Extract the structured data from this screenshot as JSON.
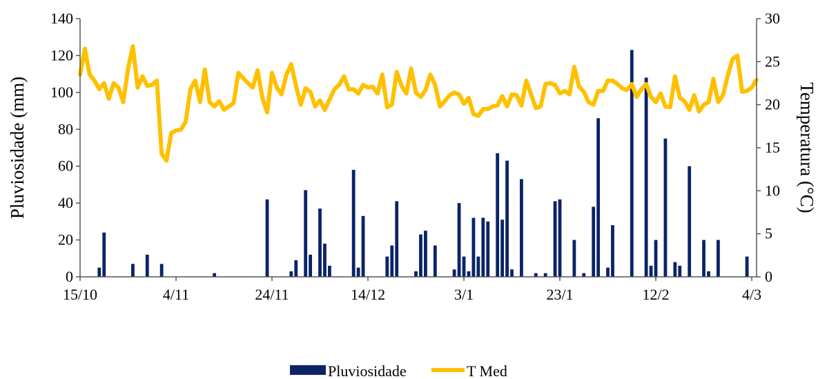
{
  "chart_data": {
    "type": "bar+line",
    "title": "",
    "ylabel": "Pluviosidade  (mm)",
    "y2label": "Temperatura  (°C)",
    "ylim": [
      0,
      140
    ],
    "y2lim": [
      0,
      30
    ],
    "yticks": [
      "0",
      "20",
      "40",
      "60",
      "80",
      "100",
      "120",
      "140"
    ],
    "y2ticks": [
      "0",
      "5",
      "10",
      "15",
      "20",
      "25",
      "30"
    ],
    "xlim": [
      "2012-10-15",
      "2013-03-05"
    ],
    "xticks": [
      {
        "date": "2012-10-15",
        "label": "15/10"
      },
      {
        "date": "2012-11-04",
        "label": "4/11"
      },
      {
        "date": "2012-11-24",
        "label": "24/11"
      },
      {
        "date": "2012-12-14",
        "label": "14/12"
      },
      {
        "date": "2013-01-03",
        "label": "3/1"
      },
      {
        "date": "2013-01-23",
        "label": "23/1"
      },
      {
        "date": "2013-02-12",
        "label": "12/2"
      },
      {
        "date": "2013-03-04",
        "label": "4/3"
      }
    ],
    "legend_position": "bottom",
    "colors": {
      "rain": "#0B2367",
      "temp": "#FFC000"
    },
    "series": [
      {
        "name": "Pluviosidade",
        "type": "bar",
        "axis": "left",
        "x": [
          "2012-10-19",
          "2012-10-20",
          "2012-10-26",
          "2012-10-29",
          "2012-11-01",
          "2012-11-12",
          "2012-11-23",
          "2012-11-28",
          "2012-11-29",
          "2012-12-01",
          "2012-12-02",
          "2012-12-04",
          "2012-12-05",
          "2012-12-06",
          "2012-12-11",
          "2012-12-12",
          "2012-12-13",
          "2012-12-18",
          "2012-12-19",
          "2012-12-20",
          "2012-12-24",
          "2012-12-25",
          "2012-12-26",
          "2012-12-28",
          "2013-01-01",
          "2013-01-02",
          "2013-01-03",
          "2013-01-04",
          "2013-01-05",
          "2013-01-06",
          "2013-01-07",
          "2013-01-08",
          "2013-01-10",
          "2013-01-11",
          "2013-01-12",
          "2013-01-13",
          "2013-01-15",
          "2013-01-18",
          "2013-01-20",
          "2013-01-22",
          "2013-01-23",
          "2013-01-26",
          "2013-01-28",
          "2013-01-30",
          "2013-01-31",
          "2013-02-02",
          "2013-02-03",
          "2013-02-07",
          "2013-02-10",
          "2013-02-11",
          "2013-02-12",
          "2013-02-14",
          "2013-02-16",
          "2013-02-17",
          "2013-02-19",
          "2013-02-22",
          "2013-02-23",
          "2013-02-25",
          "2013-03-03"
        ],
        "values": [
          5,
          24,
          7,
          12,
          7,
          2,
          42,
          3,
          9,
          47,
          12,
          37,
          18,
          6,
          58,
          5,
          33,
          11,
          17,
          41,
          3,
          23,
          25,
          17,
          4,
          40,
          11,
          3,
          32,
          11,
          32,
          30,
          67,
          31,
          63,
          4,
          53,
          2,
          2,
          41,
          42,
          20,
          2,
          38,
          86,
          5,
          28,
          123,
          108,
          6,
          20,
          75,
          8,
          6,
          60,
          20,
          3,
          20,
          11
        ]
      },
      {
        "name": "T Med",
        "type": "line",
        "axis": "right",
        "x_start": "2012-10-15",
        "x_step_days": 1,
        "values": [
          23.5,
          26.5,
          23.5,
          22.8,
          21.8,
          22.5,
          20.7,
          22.5,
          22,
          20.3,
          24.2,
          26.8,
          22,
          23.3,
          22.2,
          22.3,
          22.8,
          14.3,
          13.5,
          16.7,
          17,
          17.1,
          18,
          21.8,
          22.8,
          20.3,
          24.1,
          20.3,
          19.8,
          20.4,
          19.4,
          19.8,
          20.2,
          23.7,
          23.1,
          22.5,
          22,
          24,
          20.8,
          19.1,
          23.7,
          22,
          21.2,
          23.5,
          24.7,
          22.2,
          20,
          21.9,
          21.5,
          19.8,
          20.5,
          19.4,
          20.6,
          21.8,
          22.3,
          23.3,
          21.8,
          21.8,
          21.3,
          22.3,
          22,
          22.1,
          21.3,
          23.5,
          19.7,
          20,
          23.8,
          22.2,
          21.3,
          24.2,
          21.4,
          20.9,
          21.7,
          23.5,
          22.3,
          19.8,
          20.4,
          21.1,
          21.4,
          21.2,
          20.1,
          20.8,
          18.9,
          18.7,
          19.5,
          19.5,
          19.8,
          19.9,
          21,
          19.8,
          21.2,
          21.1,
          19.9,
          22.8,
          21.2,
          19.6,
          19.8,
          22.4,
          22.5,
          22.3,
          21.3,
          21.6,
          21.2,
          24.4,
          22.1,
          21.5,
          20.3,
          20,
          21.6,
          21.6,
          22.8,
          22.8,
          22.4,
          21.9,
          21.7,
          22.4,
          20.9,
          21.8,
          22.4,
          20.9,
          20.3,
          21.3,
          19.8,
          19.7,
          23.3,
          20.8,
          20.4,
          19.4,
          21.1,
          19.2,
          20,
          20.3,
          23,
          20.3,
          21.1,
          23.4,
          25.3,
          25.7,
          21.5,
          21.6,
          22,
          22.9
        ]
      }
    ]
  }
}
